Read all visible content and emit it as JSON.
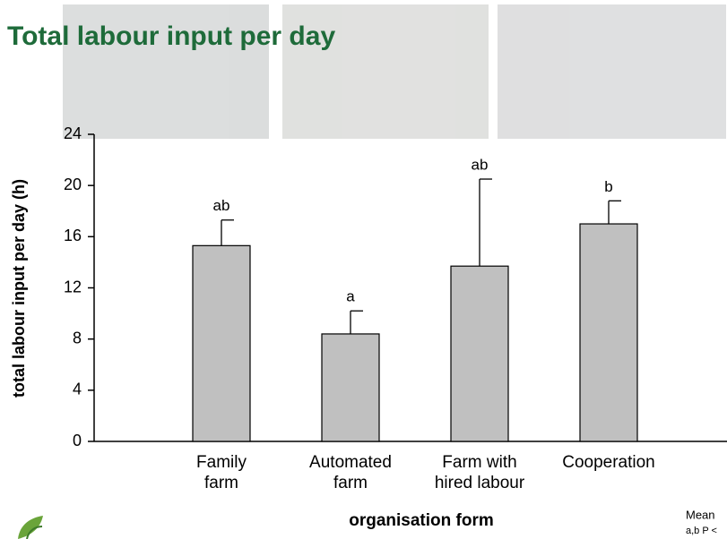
{
  "chart_data": {
    "type": "bar",
    "title": "Total labour input per day",
    "ylabel": "total labour input per day (h)",
    "xlabel": "organisation form",
    "categories": [
      "Family\nfarm",
      "Automated\nfarm",
      "Farm with\nhired labour",
      "Cooperation"
    ],
    "values": [
      15.3,
      8.4,
      13.7,
      17.0
    ],
    "errors": [
      2.0,
      1.8,
      6.8,
      1.8
    ],
    "significance": [
      "ab",
      "a",
      "ab",
      "b"
    ],
    "color": "#c0c0c0",
    "ylim": [
      0,
      24
    ],
    "yticks": [
      0,
      4,
      8,
      12,
      16,
      20,
      24
    ],
    "grid": false,
    "footnote": [
      "Mean",
      "a,b P <"
    ]
  }
}
